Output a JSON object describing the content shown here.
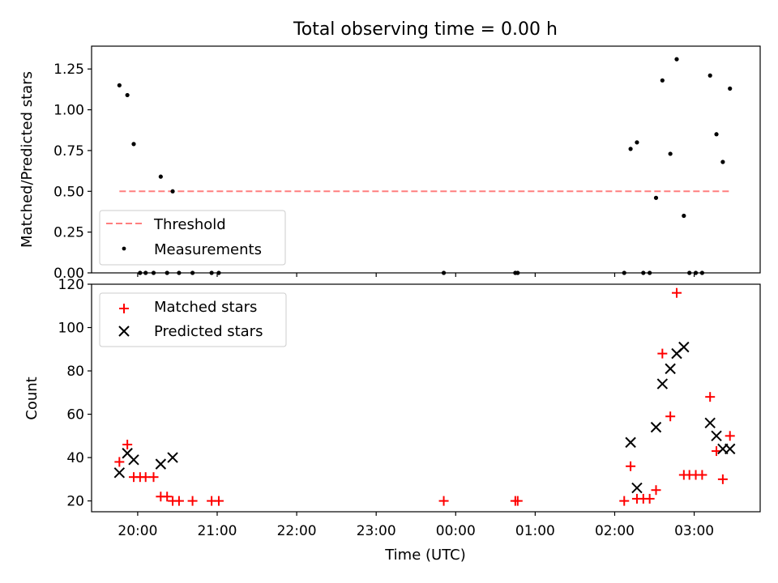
{
  "title": "Total observing time = 0.00 h",
  "xlabel": "Time (UTC)",
  "colors": {
    "threshold": "#ff7f7f",
    "measurements": "#000000",
    "matched": "#ff0000",
    "predicted": "#000000"
  },
  "chart_data": [
    {
      "type": "scatter",
      "title": "Total observing time = 0.00 h",
      "xlabel": "",
      "ylabel": "Matched/Predicted stars",
      "x_unit": "UTC time (hours after 00:00 of the first night; 24.5 = 00:30 next day)",
      "xlim": [
        19.42,
        27.83
      ],
      "ylim": [
        0,
        1.39
      ],
      "yticks": [
        0.0,
        0.25,
        0.5,
        0.75,
        1.0,
        1.25
      ],
      "ytick_labels": [
        "0.00",
        "0.25",
        "0.50",
        "0.75",
        "1.00",
        "1.25"
      ],
      "legend": {
        "placement": "lower-left",
        "entries": [
          "Threshold",
          "Measurements"
        ]
      },
      "threshold": {
        "name": "Threshold",
        "y": 0.5,
        "x_range": [
          19.77,
          27.45
        ]
      },
      "series": [
        {
          "name": "Measurements",
          "points": [
            [
              19.77,
              1.15
            ],
            [
              19.87,
              1.09
            ],
            [
              19.95,
              0.79
            ],
            [
              20.03,
              0.0
            ],
            [
              20.1,
              0.0
            ],
            [
              20.2,
              0.0
            ],
            [
              20.29,
              0.59
            ],
            [
              20.37,
              0.0
            ],
            [
              20.44,
              0.5
            ],
            [
              20.52,
              0.0
            ],
            [
              20.69,
              0.0
            ],
            [
              20.93,
              0.0
            ],
            [
              21.02,
              0.0
            ],
            [
              23.85,
              0.0
            ],
            [
              24.75,
              0.0
            ],
            [
              24.78,
              0.0
            ],
            [
              26.12,
              0.0
            ],
            [
              26.2,
              0.76
            ],
            [
              26.28,
              0.8
            ],
            [
              26.36,
              0.0
            ],
            [
              26.44,
              0.0
            ],
            [
              26.52,
              0.46
            ],
            [
              26.6,
              1.18
            ],
            [
              26.7,
              0.73
            ],
            [
              26.78,
              1.31
            ],
            [
              26.87,
              0.35
            ],
            [
              26.94,
              0.0
            ],
            [
              27.02,
              0.0
            ],
            [
              27.1,
              0.0
            ],
            [
              27.2,
              1.21
            ],
            [
              27.28,
              0.85
            ],
            [
              27.36,
              0.68
            ],
            [
              27.45,
              1.13
            ]
          ]
        }
      ]
    },
    {
      "type": "scatter",
      "title": "",
      "xlabel": "Time (UTC)",
      "ylabel": "Count",
      "xlim": [
        19.42,
        27.83
      ],
      "ylim": [
        15,
        120
      ],
      "yticks": [
        20,
        40,
        60,
        80,
        100,
        120
      ],
      "xticks": [
        20,
        21,
        22,
        23,
        24,
        25,
        26,
        27
      ],
      "xtick_labels": [
        "20:00",
        "21:00",
        "22:00",
        "23:00",
        "00:00",
        "01:00",
        "02:00",
        "03:00"
      ],
      "legend": {
        "placement": "top-left",
        "entries": [
          "Matched stars",
          "Predicted stars"
        ]
      },
      "series": [
        {
          "name": "Matched stars",
          "marker": "plus",
          "points": [
            [
              19.77,
              38
            ],
            [
              19.87,
              46
            ],
            [
              19.95,
              31
            ],
            [
              20.03,
              31
            ],
            [
              20.1,
              31
            ],
            [
              20.2,
              31
            ],
            [
              20.29,
              22
            ],
            [
              20.37,
              22
            ],
            [
              20.44,
              20
            ],
            [
              20.52,
              20
            ],
            [
              20.69,
              20
            ],
            [
              20.93,
              20
            ],
            [
              21.02,
              20
            ],
            [
              23.85,
              20
            ],
            [
              24.75,
              20
            ],
            [
              24.78,
              20
            ],
            [
              26.12,
              20
            ],
            [
              26.2,
              36
            ],
            [
              26.28,
              21
            ],
            [
              26.36,
              21
            ],
            [
              26.44,
              21
            ],
            [
              26.52,
              25
            ],
            [
              26.6,
              88
            ],
            [
              26.7,
              59
            ],
            [
              26.78,
              116
            ],
            [
              26.87,
              32
            ],
            [
              26.94,
              32
            ],
            [
              27.02,
              32
            ],
            [
              27.1,
              32
            ],
            [
              27.2,
              68
            ],
            [
              27.28,
              43
            ],
            [
              27.36,
              30
            ],
            [
              27.45,
              50
            ]
          ]
        },
        {
          "name": "Predicted stars",
          "marker": "x",
          "points": [
            [
              19.77,
              33
            ],
            [
              19.87,
              42
            ],
            [
              19.95,
              39
            ],
            [
              20.29,
              37
            ],
            [
              20.44,
              40
            ],
            [
              26.2,
              47
            ],
            [
              26.28,
              26
            ],
            [
              26.52,
              54
            ],
            [
              26.6,
              74
            ],
            [
              26.7,
              81
            ],
            [
              26.78,
              88
            ],
            [
              26.87,
              91
            ],
            [
              27.2,
              56
            ],
            [
              27.28,
              50
            ],
            [
              27.36,
              44
            ],
            [
              27.45,
              44
            ]
          ]
        }
      ]
    }
  ]
}
